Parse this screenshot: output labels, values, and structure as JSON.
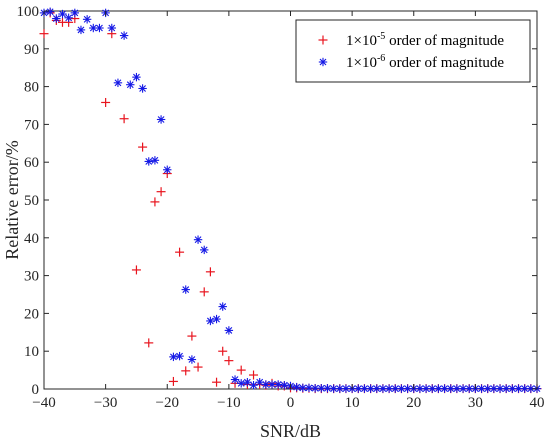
{
  "chart_data": {
    "type": "scatter",
    "title": "",
    "xlabel": "SNR/dB",
    "ylabel": "Relative error/%",
    "xlim": [
      -40,
      40
    ],
    "ylim": [
      0,
      100
    ],
    "xticks": [
      -40,
      -30,
      -20,
      -10,
      0,
      10,
      20,
      30,
      40
    ],
    "yticks": [
      0,
      10,
      20,
      30,
      40,
      50,
      60,
      70,
      80,
      90,
      100
    ],
    "grid": false,
    "legend_position": "top-right",
    "series": [
      {
        "name_base": "1×10",
        "name_exp": "-5",
        "name_rest": " order of magnitude",
        "marker": "plus",
        "color": "#e8141e",
        "x": [
          -40,
          -39,
          -38,
          -37,
          -36,
          -35,
          -30,
          -29,
          -27,
          -25,
          -24,
          -23,
          -22,
          -21,
          -20,
          -19,
          -18,
          -17,
          -16,
          -15,
          -14,
          -13,
          -12,
          -11,
          -10,
          -9,
          -8,
          -7,
          -6,
          -5,
          -4,
          -3,
          -2,
          -1,
          0,
          1,
          2,
          3,
          4,
          5,
          6,
          7,
          8,
          9,
          10,
          11,
          12,
          13,
          14,
          15,
          16,
          17,
          18,
          19,
          20,
          21,
          22,
          23,
          24,
          25,
          26,
          27,
          28,
          29,
          30,
          31,
          32,
          33,
          34,
          35,
          36,
          37,
          38,
          39,
          40
        ],
        "y": [
          94,
          99.5,
          97.5,
          97,
          97,
          98,
          75.8,
          94,
          71.5,
          31.5,
          64,
          12.2,
          49.5,
          52.2,
          57,
          2,
          36.2,
          4.8,
          14,
          5.8,
          25.7,
          31,
          1.8,
          10,
          7.5,
          1.5,
          5,
          1.2,
          3.7,
          1.2,
          1,
          1.5,
          0.8,
          0.8,
          0.3,
          0.3,
          0.2,
          0.2,
          0.1,
          0.1,
          0.1,
          0.1,
          0.1,
          0.1,
          0.1,
          0.1,
          0.1,
          0.1,
          0.1,
          0.1,
          0.1,
          0.1,
          0.1,
          0.1,
          0.1,
          0.1,
          0.1,
          0.1,
          0.1,
          0.1,
          0.1,
          0.1,
          0.1,
          0.1,
          0.1,
          0.1,
          0.1,
          0.1,
          0.1,
          0.1,
          0.1,
          0.1,
          0.1,
          0.1,
          0.1
        ]
      },
      {
        "name_base": "1×10",
        "name_exp": "-6",
        "name_rest": " order of magnitude",
        "marker": "asterisk",
        "color": "#1418e6",
        "x": [
          -40,
          -39,
          -38,
          -37,
          -36,
          -35,
          -34,
          -33,
          -32,
          -31,
          -30,
          -29,
          -28,
          -27,
          -26,
          -25,
          -24,
          -23,
          -22,
          -21,
          -20,
          -19,
          -18,
          -17,
          -16,
          -15,
          -14,
          -13,
          -12,
          -11,
          -10,
          -9,
          -8,
          -7,
          -6,
          -5,
          -4,
          -3,
          -2,
          -1,
          0,
          1,
          2,
          3,
          4,
          5,
          6,
          7,
          8,
          9,
          10,
          11,
          12,
          13,
          14,
          15,
          16,
          17,
          18,
          19,
          20,
          21,
          22,
          23,
          24,
          25,
          26,
          27,
          28,
          29,
          30,
          31,
          32,
          33,
          34,
          35,
          36,
          37,
          38,
          39,
          40
        ],
        "y": [
          99.5,
          99.8,
          98,
          99.2,
          98.2,
          99.5,
          95,
          97.8,
          95.5,
          95.5,
          99.5,
          95.5,
          81,
          93.5,
          80.5,
          82.5,
          79.5,
          60.2,
          60.5,
          71.3,
          58,
          8.5,
          8.7,
          26.3,
          7.8,
          39.5,
          36.8,
          18,
          18.5,
          21.8,
          15.5,
          2.5,
          1.5,
          1.8,
          1,
          1.8,
          1.2,
          1.2,
          1.2,
          1,
          0.8,
          0.5,
          0.3,
          0.3,
          0.2,
          0.2,
          0.2,
          0.1,
          0.1,
          0.1,
          0.1,
          0.1,
          0.1,
          0.1,
          0.1,
          0.1,
          0.1,
          0.1,
          0.1,
          0.1,
          0.1,
          0.1,
          0.1,
          0.1,
          0.1,
          0.1,
          0.1,
          0.1,
          0.1,
          0.1,
          0.1,
          0.1,
          0.1,
          0.1,
          0.1,
          0.1,
          0.1,
          0.1,
          0.1,
          0.1,
          0.1
        ]
      }
    ]
  }
}
